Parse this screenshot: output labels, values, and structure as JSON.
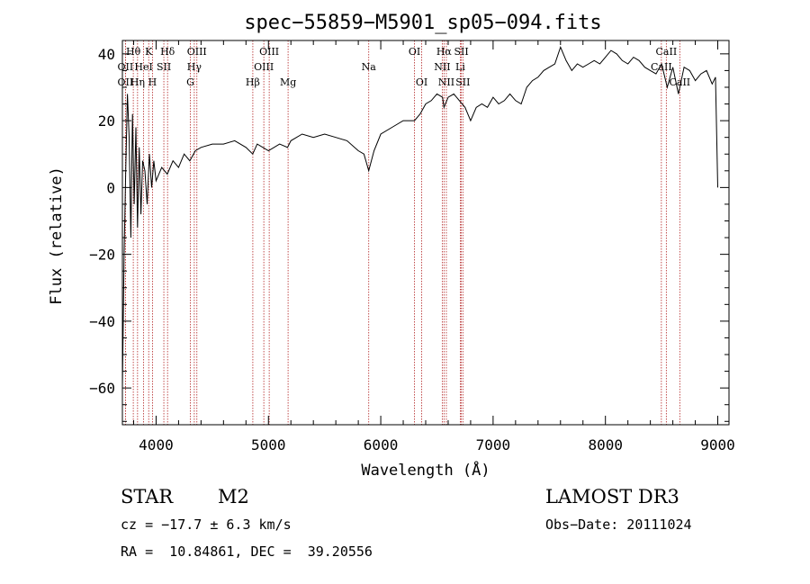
{
  "chart_data": {
    "type": "line",
    "title": "spec−55859−M5901_sp05−094.fits",
    "xlabel": "Wavelength (Å)",
    "ylabel": "Flux (relative)",
    "xlim": [
      3700,
      9100
    ],
    "ylim": [
      -71,
      44
    ],
    "x_ticks": [
      4000,
      5000,
      6000,
      7000,
      8000,
      9000
    ],
    "x_tick_labels": [
      "4000",
      "5000",
      "6000",
      "7000",
      "8000",
      "9000"
    ],
    "y_ticks": [
      -60,
      -40,
      -20,
      0,
      20,
      40
    ],
    "y_tick_labels": [
      "−60",
      "−40",
      "−20",
      "0",
      "20",
      "40"
    ],
    "series": [
      {
        "name": "flux",
        "x": [
          3700,
          3715,
          3730,
          3745,
          3760,
          3775,
          3790,
          3805,
          3820,
          3835,
          3850,
          3865,
          3880,
          3900,
          3920,
          3940,
          3960,
          3980,
          4000,
          4050,
          4100,
          4150,
          4200,
          4250,
          4300,
          4350,
          4400,
          4500,
          4600,
          4700,
          4800,
          4860,
          4900,
          5000,
          5100,
          5170,
          5200,
          5300,
          5400,
          5500,
          5600,
          5700,
          5800,
          5850,
          5893,
          5940,
          6000,
          6100,
          6200,
          6300,
          6350,
          6400,
          6450,
          6500,
          6550,
          6563,
          6600,
          6650,
          6700,
          6750,
          6800,
          6850,
          6900,
          6950,
          7000,
          7050,
          7100,
          7150,
          7200,
          7250,
          7300,
          7350,
          7400,
          7450,
          7500,
          7550,
          7600,
          7650,
          7700,
          7750,
          7800,
          7850,
          7900,
          7950,
          8000,
          8050,
          8100,
          8150,
          8200,
          8250,
          8300,
          8350,
          8400,
          8450,
          8500,
          8550,
          8600,
          8650,
          8700,
          8750,
          8800,
          8850,
          8900,
          8950,
          8980,
          9000
        ],
        "y": [
          -60,
          -20,
          5,
          28,
          15,
          -15,
          22,
          -5,
          18,
          -12,
          12,
          -8,
          8,
          5,
          -5,
          10,
          0,
          8,
          2,
          6,
          4,
          8,
          6,
          10,
          8,
          11,
          12,
          13,
          13,
          14,
          12,
          10,
          13,
          11,
          13,
          12,
          14,
          16,
          15,
          16,
          15,
          14,
          11,
          10,
          5,
          11,
          16,
          18,
          20,
          20,
          22,
          25,
          26,
          28,
          27,
          24,
          27,
          28,
          26,
          24,
          20,
          24,
          25,
          24,
          27,
          25,
          26,
          28,
          26,
          25,
          30,
          32,
          33,
          35,
          36,
          37,
          42,
          38,
          35,
          37,
          36,
          37,
          38,
          37,
          39,
          41,
          40,
          38,
          37,
          39,
          38,
          36,
          35,
          34,
          37,
          30,
          36,
          28,
          36,
          35,
          32,
          34,
          35,
          31,
          33,
          0
        ]
      }
    ],
    "spectral_lines": [
      {
        "label": "Hθ",
        "wave": 3797,
        "row": 1
      },
      {
        "label": "K",
        "wave": 3934,
        "row": 1
      },
      {
        "label": "Hδ",
        "wave": 4102,
        "row": 1
      },
      {
        "label": "OIII",
        "wave": 4363,
        "row": 1
      },
      {
        "label": "OIII",
        "wave": 5007,
        "row": 1
      },
      {
        "label": "OI",
        "wave": 6300,
        "row": 1
      },
      {
        "label": "Hα",
        "wave": 6563,
        "row": 1
      },
      {
        "label": "SII",
        "wave": 6717,
        "row": 1
      },
      {
        "label": "CaII",
        "wave": 8542,
        "row": 1
      },
      {
        "label": "OII",
        "wave": 3727,
        "row": 2
      },
      {
        "label": "HeI",
        "wave": 3889,
        "row": 2
      },
      {
        "label": "SII",
        "wave": 4069,
        "row": 2
      },
      {
        "label": "Hγ",
        "wave": 4340,
        "row": 2
      },
      {
        "label": "OIII",
        "wave": 4959,
        "row": 2
      },
      {
        "label": "Na",
        "wave": 5893,
        "row": 2
      },
      {
        "label": "NII",
        "wave": 6548,
        "row": 2
      },
      {
        "label": "Li",
        "wave": 6708,
        "row": 2
      },
      {
        "label": "CaII",
        "wave": 8498,
        "row": 2
      },
      {
        "label": "OII",
        "wave": 3727,
        "row": 3
      },
      {
        "label": "Hη",
        "wave": 3835,
        "row": 3
      },
      {
        "label": "H",
        "wave": 3968,
        "row": 3
      },
      {
        "label": "G",
        "wave": 4305,
        "row": 3
      },
      {
        "label": "Hβ",
        "wave": 4861,
        "row": 3
      },
      {
        "label": "Mg",
        "wave": 5175,
        "row": 3
      },
      {
        "label": "OI",
        "wave": 6364,
        "row": 3
      },
      {
        "label": "NII",
        "wave": 6584,
        "row": 3
      },
      {
        "label": "SII",
        "wave": 6731,
        "row": 3
      },
      {
        "label": "CaII",
        "wave": 8662,
        "row": 3
      }
    ],
    "line_marker_color": "#b22222",
    "spectrum_color": "#000000"
  },
  "info": {
    "object_class": "STAR",
    "subclass": "M2",
    "survey": "LAMOST DR3",
    "cz": "cz = −17.7 ± 6.3 km/s",
    "obs_date": "Obs−Date: 20111024",
    "radec": "RA =  10.84861, DEC =  39.20556"
  }
}
